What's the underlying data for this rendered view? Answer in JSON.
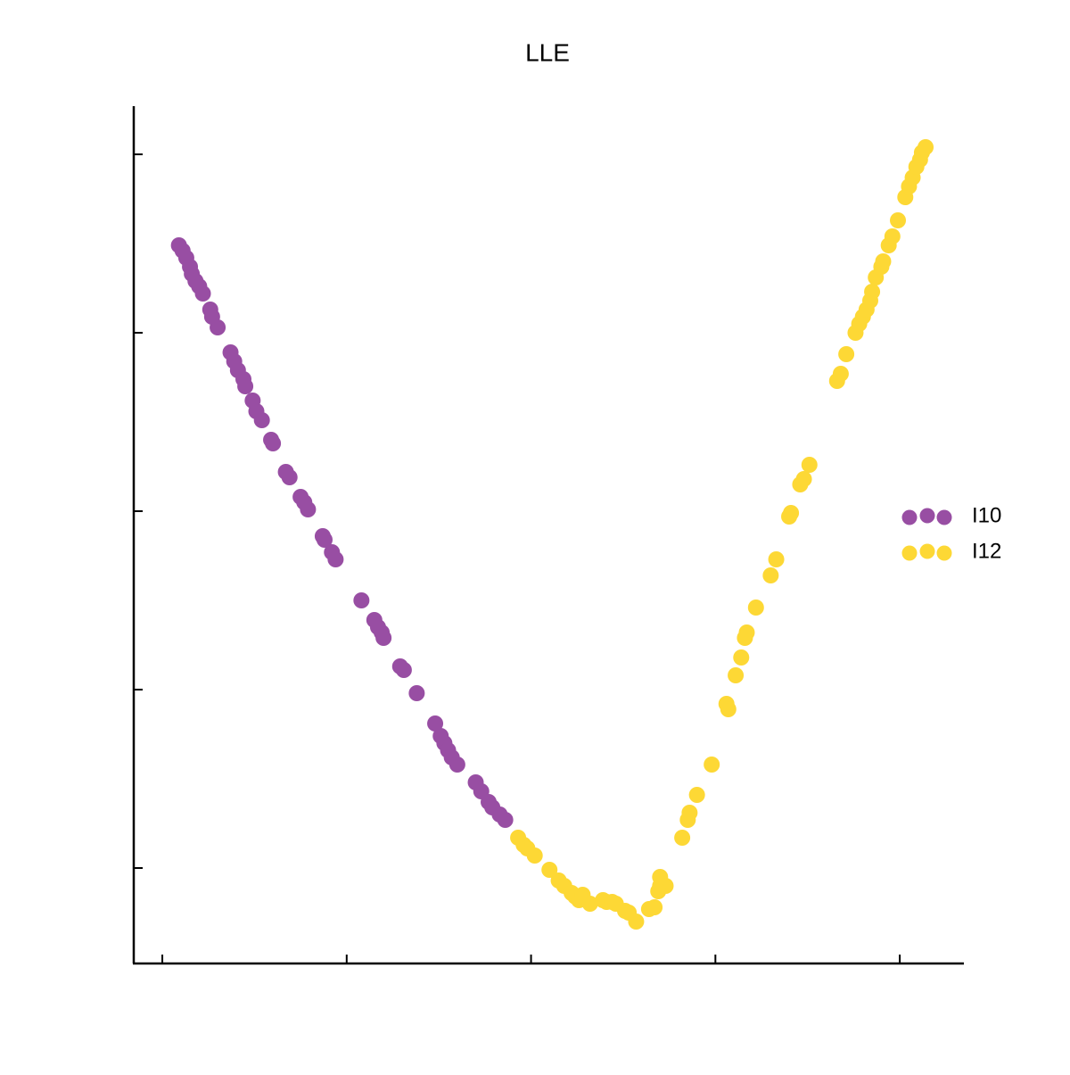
{
  "chart_data": {
    "type": "scatter",
    "title": "LLE",
    "xlim": [
      -0.155,
      4.343
    ],
    "ylim": [
      -0.535,
      4.265
    ],
    "xticks": [
      0,
      1,
      2,
      3,
      4
    ],
    "yticks": [
      0,
      1,
      2,
      3,
      4
    ],
    "legend": "right",
    "series": [
      {
        "name": "I10",
        "color": "#984ea3",
        "x": [
          0.09,
          0.11,
          0.13,
          0.15,
          0.16,
          0.18,
          0.2,
          0.22,
          0.26,
          0.27,
          0.3,
          0.37,
          0.39,
          0.41,
          0.44,
          0.45,
          0.49,
          0.51,
          0.54,
          0.59,
          0.6,
          0.67,
          0.69,
          0.75,
          0.77,
          0.79,
          0.87,
          0.88,
          0.92,
          0.94,
          1.08,
          1.15,
          1.17,
          1.19,
          1.2,
          1.29,
          1.31,
          1.38,
          1.48,
          1.51,
          1.53,
          1.55,
          1.57,
          1.6,
          1.7,
          1.73,
          1.77,
          1.79,
          1.83,
          1.86
        ],
        "y": [
          3.49,
          3.46,
          3.42,
          3.37,
          3.33,
          3.29,
          3.26,
          3.22,
          3.13,
          3.09,
          3.03,
          2.89,
          2.84,
          2.79,
          2.74,
          2.7,
          2.62,
          2.56,
          2.51,
          2.4,
          2.38,
          2.22,
          2.19,
          2.08,
          2.05,
          2.01,
          1.86,
          1.84,
          1.77,
          1.73,
          1.5,
          1.39,
          1.35,
          1.32,
          1.29,
          1.13,
          1.11,
          0.98,
          0.81,
          0.74,
          0.7,
          0.66,
          0.62,
          0.58,
          0.48,
          0.43,
          0.37,
          0.34,
          0.3,
          0.27
        ]
      },
      {
        "name": "I12",
        "color": "#fdd835",
        "x": [
          1.93,
          1.96,
          1.98,
          2.02,
          2.1,
          2.15,
          2.18,
          2.22,
          2.24,
          2.26,
          2.28,
          2.32,
          2.39,
          2.41,
          2.44,
          2.46,
          2.51,
          2.53,
          2.57,
          2.64,
          2.67,
          2.7,
          2.7,
          2.73,
          2.69,
          2.82,
          2.85,
          2.86,
          2.9,
          2.98,
          3.06,
          3.07,
          3.11,
          3.14,
          3.16,
          3.17,
          3.22,
          3.3,
          3.33,
          3.4,
          3.41,
          3.46,
          3.48,
          3.51,
          3.66,
          3.68,
          3.71,
          3.76,
          3.78,
          3.8,
          3.82,
          3.84,
          3.85,
          3.87,
          3.9,
          3.91,
          3.94,
          3.96,
          3.99,
          4.03,
          4.05,
          4.07,
          4.09,
          4.11,
          4.12,
          4.14
        ],
        "y": [
          0.17,
          0.13,
          0.11,
          0.07,
          -0.01,
          -0.07,
          -0.1,
          -0.14,
          -0.16,
          -0.18,
          -0.15,
          -0.2,
          -0.18,
          -0.19,
          -0.19,
          -0.2,
          -0.24,
          -0.25,
          -0.3,
          -0.23,
          -0.22,
          -0.05,
          -0.1,
          -0.1,
          -0.13,
          0.17,
          0.27,
          0.31,
          0.41,
          0.58,
          0.92,
          0.89,
          1.08,
          1.18,
          1.29,
          1.32,
          1.46,
          1.64,
          1.73,
          1.97,
          1.99,
          2.15,
          2.18,
          2.26,
          2.73,
          2.77,
          2.88,
          3.0,
          3.05,
          3.09,
          3.13,
          3.18,
          3.23,
          3.31,
          3.37,
          3.4,
          3.49,
          3.54,
          3.63,
          3.76,
          3.82,
          3.87,
          3.93,
          3.97,
          4.01,
          4.04
        ]
      }
    ]
  }
}
